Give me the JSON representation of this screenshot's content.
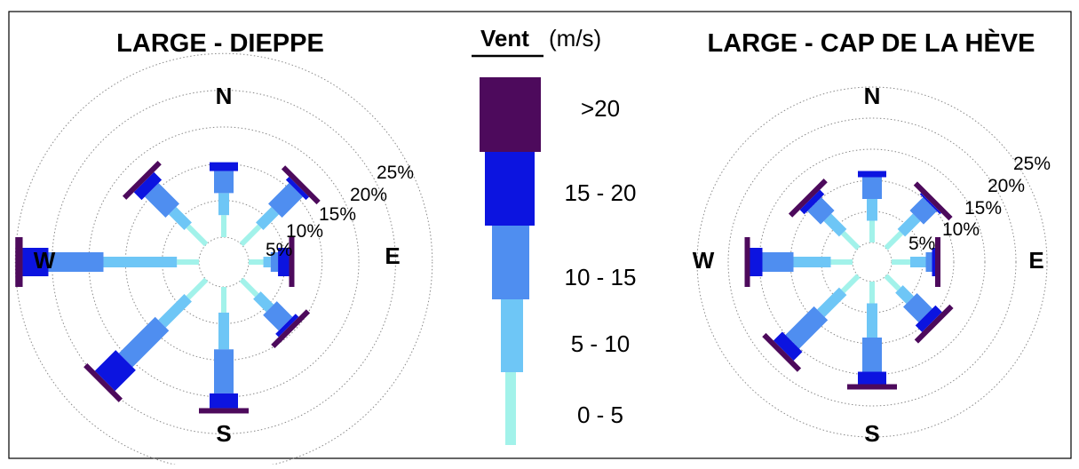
{
  "chart_data": {
    "type": "windrose",
    "legend": {
      "title": "Vent",
      "unit": "(m/s)",
      "classes": [
        {
          "label": ">20",
          "color": "#4d0a5c"
        },
        {
          "label": "15 - 20",
          "color": "#0c14e0"
        },
        {
          "label": "10 - 15",
          "color": "#4f8ef0"
        },
        {
          "label": "5 - 10",
          "color": "#6ec6f6"
        },
        {
          "label": "0 - 5",
          "color": "#a2f2ea"
        }
      ]
    },
    "directions": [
      "N",
      "NE",
      "E",
      "SE",
      "S",
      "SW",
      "W",
      "NW"
    ],
    "compass_labels": {
      "n": "N",
      "e": "E",
      "s": "S",
      "w": "W"
    },
    "ring_labels": [
      "5%",
      "10%",
      "15%",
      "20%",
      "25%"
    ],
    "panels": [
      {
        "title": "LARGE - DIEPPE",
        "series": [
          {
            "direction": "N",
            "values": [
              3.0,
              3.0,
              3.0,
              1.2,
              0.0
            ]
          },
          {
            "direction": "NE",
            "values": [
              3.5,
              3.0,
              4.0,
              0.6,
              0.5
            ]
          },
          {
            "direction": "E",
            "values": [
              2.0,
              1.0,
              1.0,
              1.5,
              0.2
            ]
          },
          {
            "direction": "SE",
            "values": [
              3.0,
              2.5,
              3.0,
              0.6,
              0.3
            ]
          },
          {
            "direction": "S",
            "values": [
              3.5,
              5.0,
              6.0,
              2.0,
              0.3
            ]
          },
          {
            "direction": "SW",
            "values": [
              3.5,
              5.0,
              7.0,
              4.0,
              0.4
            ]
          },
          {
            "direction": "W",
            "values": [
              3.0,
              10.0,
              7.5,
              3.5,
              1.0
            ]
          },
          {
            "direction": "NW",
            "values": [
              3.5,
              3.0,
              4.0,
              1.5,
              0.5
            ]
          }
        ]
      },
      {
        "title": "LARGE - CAP DE LA HÈVE",
        "series": [
          {
            "direction": "N",
            "values": [
              3.5,
              3.5,
              3.5,
              1.0,
              0.0
            ]
          },
          {
            "direction": "NE",
            "values": [
              3.5,
              3.5,
              3.0,
              0.3,
              0.3
            ]
          },
          {
            "direction": "E",
            "values": [
              3.0,
              2.5,
              1.0,
              0.5,
              0.1
            ]
          },
          {
            "direction": "SE",
            "values": [
              3.0,
              2.5,
              3.5,
              1.5,
              0.2
            ]
          },
          {
            "direction": "S",
            "values": [
              3.5,
              5.5,
              5.5,
              2.0,
              0.3
            ]
          },
          {
            "direction": "SW",
            "values": [
              3.5,
              5.0,
              6.5,
              2.0,
              0.5
            ]
          },
          {
            "direction": "W",
            "values": [
              3.5,
              6.0,
              5.0,
              2.0,
              0.5
            ]
          },
          {
            "direction": "NW",
            "values": [
              3.5,
              3.5,
              3.0,
              1.0,
              0.5
            ]
          }
        ]
      }
    ]
  }
}
